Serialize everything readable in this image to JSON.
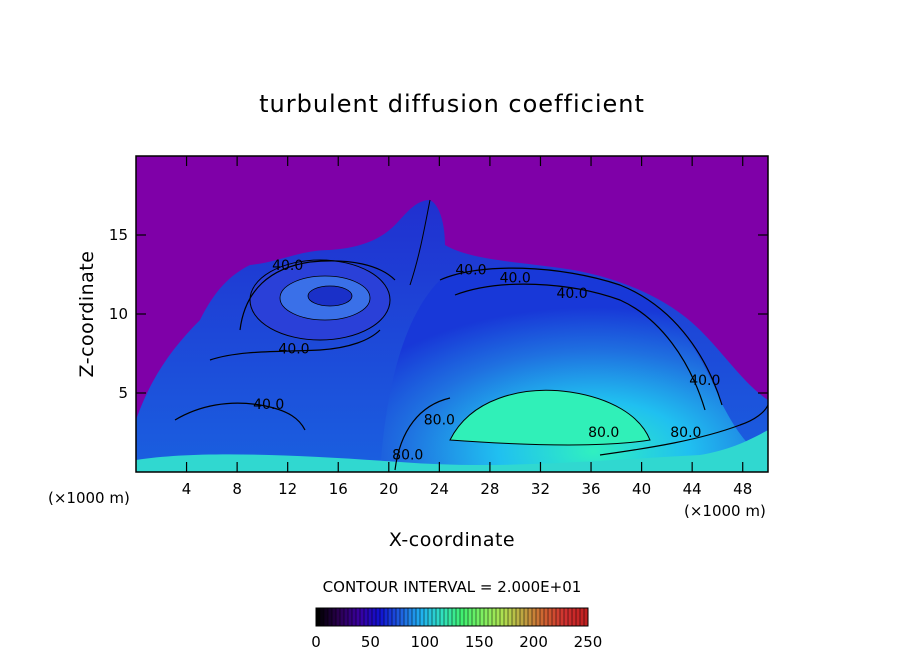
{
  "chart_data": {
    "type": "heatmap",
    "title": "turbulent diffusion coefficient",
    "xlabel": "X-coordinate",
    "ylabel": "Z-coordinate",
    "x_unit": "(×1000 m)",
    "y_unit": "(×1000 m)",
    "xlim": [
      0,
      50
    ],
    "ylim": [
      0,
      20
    ],
    "x_ticks": [
      "4",
      "8",
      "12",
      "16",
      "20",
      "24",
      "28",
      "32",
      "36",
      "40",
      "44",
      "48"
    ],
    "y_ticks": [
      "5",
      "10",
      "15"
    ],
    "contour_interval_text": "CONTOUR INTERVAL = 2.000E+01",
    "contour_labels": [
      {
        "text": "40.0",
        "x": 12.0,
        "z": 12.8
      },
      {
        "text": "40.0",
        "x": 26.5,
        "z": 12.5
      },
      {
        "text": "40.0",
        "x": 30.0,
        "z": 12.0
      },
      {
        "text": "40.0",
        "x": 34.5,
        "z": 11.0
      },
      {
        "text": "40.0",
        "x": 12.5,
        "z": 7.5
      },
      {
        "text": "40.0",
        "x": 10.5,
        "z": 4.0
      },
      {
        "text": "40.0",
        "x": 45.0,
        "z": 5.5
      },
      {
        "text": "80.0",
        "x": 24.0,
        "z": 3.0
      },
      {
        "text": "80.0",
        "x": 37.0,
        "z": 2.2
      },
      {
        "text": "80.0",
        "x": 21.5,
        "z": 0.8
      },
      {
        "text": "80.0",
        "x": 43.5,
        "z": 2.2
      }
    ],
    "colorbar": {
      "min": 0,
      "max": 250,
      "tick_labels": [
        "0",
        "50",
        "100",
        "150",
        "200",
        "250"
      ],
      "colors": [
        "#000000",
        "#2a0050",
        "#3a00a0",
        "#1010d0",
        "#1f5fe0",
        "#1fb0f0",
        "#30e0c0",
        "#40f070",
        "#80f060",
        "#b0e050",
        "#c0a040",
        "#d06030",
        "#d03030",
        "#c02020"
      ]
    },
    "background_color": "#7f00a8"
  }
}
